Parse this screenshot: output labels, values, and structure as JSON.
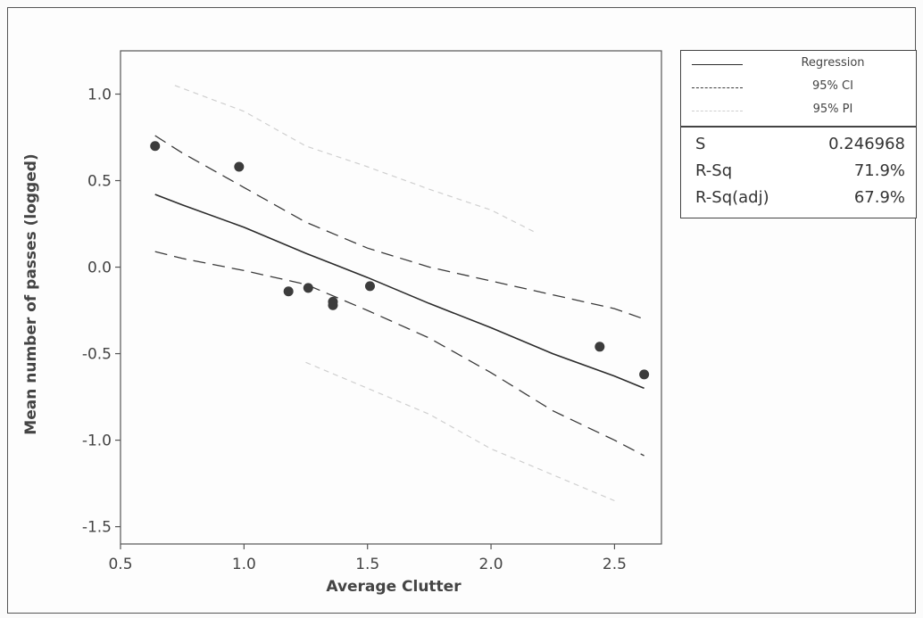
{
  "chart_data": {
    "type": "scatter",
    "xlabel": "Average Clutter",
    "ylabel": "Mean number of passes (logged)",
    "xlim": [
      0.5,
      2.69
    ],
    "ylim": [
      -1.6,
      1.25
    ],
    "xticks": [
      "0.5",
      "1.0",
      "1.5",
      "2.0",
      "2.5"
    ],
    "xtick_values": [
      0.5,
      1.0,
      1.5,
      2.0,
      2.5
    ],
    "yticks": [
      "1.0",
      "0.5",
      "0.0",
      "-0.5",
      "-1.0",
      "-1.5"
    ],
    "ytick_values": [
      1.0,
      0.5,
      0.0,
      -0.5,
      -1.0,
      -1.5
    ],
    "grid": false,
    "legend_position": "right",
    "points": [
      {
        "x": 0.64,
        "y": 0.7
      },
      {
        "x": 0.98,
        "y": 0.58
      },
      {
        "x": 1.18,
        "y": -0.14
      },
      {
        "x": 1.26,
        "y": -0.12
      },
      {
        "x": 1.36,
        "y": -0.2
      },
      {
        "x": 1.36,
        "y": -0.22
      },
      {
        "x": 1.51,
        "y": -0.11
      },
      {
        "x": 2.44,
        "y": -0.46
      },
      {
        "x": 2.62,
        "y": -0.62
      }
    ],
    "series": [
      {
        "name": "Regression",
        "style": "solid",
        "points": [
          [
            0.64,
            0.42
          ],
          [
            0.75,
            0.36
          ],
          [
            1.0,
            0.23
          ],
          [
            1.25,
            0.08
          ],
          [
            1.5,
            -0.06
          ],
          [
            1.75,
            -0.21
          ],
          [
            2.0,
            -0.35
          ],
          [
            2.25,
            -0.5
          ],
          [
            2.5,
            -0.63
          ],
          [
            2.62,
            -0.7
          ]
        ]
      },
      {
        "name": "95% CI",
        "style": "dashed",
        "points": [
          [
            0.64,
            0.76
          ],
          [
            0.75,
            0.66
          ],
          [
            1.0,
            0.46
          ],
          [
            1.25,
            0.26
          ],
          [
            1.5,
            0.11
          ],
          [
            1.75,
            0.0
          ],
          [
            2.0,
            -0.08
          ],
          [
            2.25,
            -0.16
          ],
          [
            2.5,
            -0.24
          ],
          [
            2.62,
            -0.3
          ]
        ]
      },
      {
        "name": "95% CI lower",
        "style": "dashed",
        "points": [
          [
            0.64,
            0.09
          ],
          [
            0.75,
            0.05
          ],
          [
            1.0,
            -0.02
          ],
          [
            1.25,
            -0.1
          ],
          [
            1.5,
            -0.25
          ],
          [
            1.75,
            -0.41
          ],
          [
            2.0,
            -0.61
          ],
          [
            2.25,
            -0.83
          ],
          [
            2.5,
            -1.0
          ],
          [
            2.62,
            -1.09
          ]
        ]
      },
      {
        "name": "95% PI",
        "style": "dotted",
        "points": [
          [
            0.72,
            1.05
          ],
          [
            1.0,
            0.9
          ],
          [
            1.25,
            0.7
          ],
          [
            1.5,
            0.58
          ],
          [
            1.75,
            0.45
          ],
          [
            2.0,
            0.33
          ],
          [
            2.18,
            0.2
          ]
        ]
      },
      {
        "name": "95% PI lower",
        "style": "dotted",
        "points": [
          [
            1.25,
            -0.55
          ],
          [
            1.5,
            -0.7
          ],
          [
            1.75,
            -0.85
          ],
          [
            2.0,
            -1.05
          ],
          [
            2.25,
            -1.2
          ],
          [
            2.5,
            -1.35
          ]
        ]
      }
    ],
    "colors": {
      "line": "#2b2b2b",
      "ci": "#3a3a3a",
      "pi": "#cfcfcf",
      "point": "#3c3c3c"
    }
  },
  "legend": {
    "regression": "Regression",
    "ci": "95% CI",
    "pi": "95% PI"
  },
  "stats": [
    {
      "name": "S",
      "value": "0.246968"
    },
    {
      "name": "R-Sq",
      "value": "71.9%"
    },
    {
      "name": "R-Sq(adj)",
      "value": "67.9%"
    }
  ]
}
